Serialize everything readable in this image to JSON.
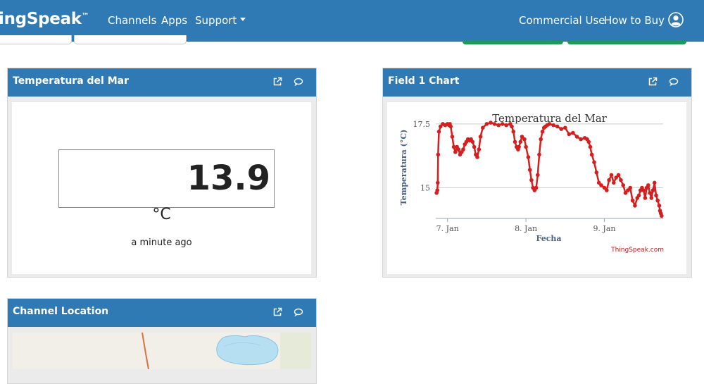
{
  "navbar": {
    "brand": "ingSpeak",
    "brand_tm": "™",
    "links": [
      "Channels",
      "Apps",
      "Support"
    ],
    "right_links": [
      "Commercial Use",
      "How to Buy"
    ]
  },
  "colors": {
    "navbar": "#2f79b4",
    "series": "#d51f1f",
    "button_green": "#1d9a57"
  },
  "panels": {
    "lamp": {
      "title": "Temperatura del Mar",
      "value": "13.9",
      "unit": "°C",
      "updated": "a minute ago"
    },
    "chart": {
      "title": "Field 1 Chart"
    },
    "location": {
      "title": "Channel Location"
    }
  },
  "chart_data": {
    "type": "line",
    "title": "Temperatura del Mar",
    "xlabel": "Fecha",
    "ylabel": "Temperatura (°C)",
    "credit": "ThingSpeak.com",
    "x_ticks": [
      {
        "label": "7. Jan",
        "x": 7
      },
      {
        "label": "8. Jan",
        "x": 8
      },
      {
        "label": "9. Jan",
        "x": 9
      }
    ],
    "y_ticks": [
      15,
      17.5
    ],
    "xlim": [
      6.85,
      9.75
    ],
    "ylim": [
      13.8,
      17.8
    ],
    "grid": true,
    "series": [
      {
        "name": "Field 1",
        "x": [
          6.86,
          6.87,
          6.875,
          6.88,
          6.89,
          6.91,
          6.94,
          6.97,
          7.0,
          7.02,
          7.03,
          7.04,
          7.06,
          7.08,
          7.1,
          7.12,
          7.14,
          7.16,
          7.18,
          7.2,
          7.22,
          7.24,
          7.26,
          7.28,
          7.3,
          7.32,
          7.34,
          7.36,
          7.38,
          7.4,
          7.42,
          7.45,
          7.5,
          7.55,
          7.6,
          7.65,
          7.7,
          7.75,
          7.8,
          7.82,
          7.84,
          7.86,
          7.88,
          7.9,
          7.91,
          7.93,
          7.95,
          7.98,
          8.0,
          8.03,
          8.05,
          8.07,
          8.09,
          8.11,
          8.13,
          8.15,
          8.17,
          8.19,
          8.21,
          8.23,
          8.25,
          8.27,
          8.3,
          8.35,
          8.4,
          8.45,
          8.5,
          8.55,
          8.6,
          8.65,
          8.7,
          8.75,
          8.78,
          8.8,
          8.82,
          8.84,
          8.87,
          8.9,
          8.93,
          8.96,
          9.0,
          9.03,
          9.06,
          9.09,
          9.12,
          9.15,
          9.18,
          9.21,
          9.24,
          9.27,
          9.3,
          9.33,
          9.36,
          9.39,
          9.42,
          9.44,
          9.46,
          9.48,
          9.5,
          9.52,
          9.54,
          9.56,
          9.58,
          9.6,
          9.62,
          9.64,
          9.66,
          9.68,
          9.7,
          9.71,
          9.72,
          9.73
        ],
        "y": [
          14.8,
          14.9,
          15.2,
          16.3,
          17.2,
          17.4,
          17.5,
          17.45,
          17.5,
          17.45,
          17.5,
          17.4,
          17.0,
          16.6,
          16.4,
          16.6,
          16.5,
          16.3,
          16.4,
          16.5,
          16.7,
          16.8,
          16.9,
          16.85,
          16.9,
          16.8,
          16.6,
          16.3,
          16.2,
          16.5,
          17.0,
          17.35,
          17.5,
          17.55,
          17.5,
          17.45,
          17.5,
          17.45,
          17.5,
          17.4,
          17.2,
          16.8,
          16.6,
          16.5,
          16.6,
          16.8,
          17.0,
          16.9,
          16.6,
          16.2,
          15.7,
          15.3,
          15.0,
          14.9,
          15.0,
          15.5,
          16.3,
          16.9,
          17.2,
          17.35,
          17.4,
          17.45,
          17.5,
          17.45,
          17.4,
          17.3,
          17.35,
          17.1,
          17.15,
          17.0,
          16.9,
          16.95,
          16.9,
          16.8,
          16.6,
          16.3,
          16.0,
          15.6,
          15.2,
          15.1,
          15.0,
          14.9,
          15.3,
          15.5,
          15.2,
          15.4,
          15.5,
          15.3,
          15.1,
          14.8,
          14.9,
          15.0,
          14.5,
          14.3,
          14.6,
          14.7,
          14.9,
          15.0,
          14.9,
          14.6,
          15.0,
          15.1,
          14.8,
          14.6,
          14.9,
          15.2,
          14.7,
          14.5,
          14.3,
          14.1,
          14.0,
          13.9
        ]
      }
    ]
  }
}
